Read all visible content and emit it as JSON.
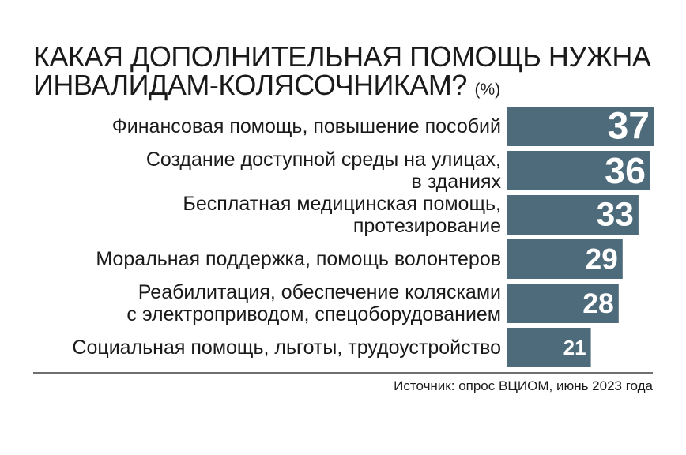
{
  "title": {
    "line1": "КАКАЯ ДОПОЛНИТЕЛЬНАЯ ПОМОЩЬ НУЖНА",
    "line2": "ИНВАЛИДАМ-КОЛЯСОЧНИКАМ?",
    "unit": "(%)"
  },
  "chart_data": {
    "type": "bar",
    "orientation": "horizontal",
    "categories": [
      [
        "Финансовая помощь, повышение пособий"
      ],
      [
        "Создание доступной среды на улицах,",
        "в зданиях"
      ],
      [
        "Бесплатная медицинская помощь,",
        "протезирование"
      ],
      [
        "Моральная поддержка, помощь волонтеров"
      ],
      [
        "Реабилитация, обеспечение колясками",
        "с электроприводом, спецоборудованием"
      ],
      [
        "Социальная помощь, льготы, трудоустройство"
      ]
    ],
    "values": [
      37,
      36,
      33,
      29,
      28,
      21
    ],
    "data_labels": [
      "37",
      "36",
      "33",
      "29",
      "28",
      "21"
    ],
    "bar_color": "#4d6b7b",
    "label_color": "#ffffff",
    "grid": false,
    "legend": "none"
  },
  "source": "Источник: опрос ВЦИОМ, июнь 2023 года"
}
